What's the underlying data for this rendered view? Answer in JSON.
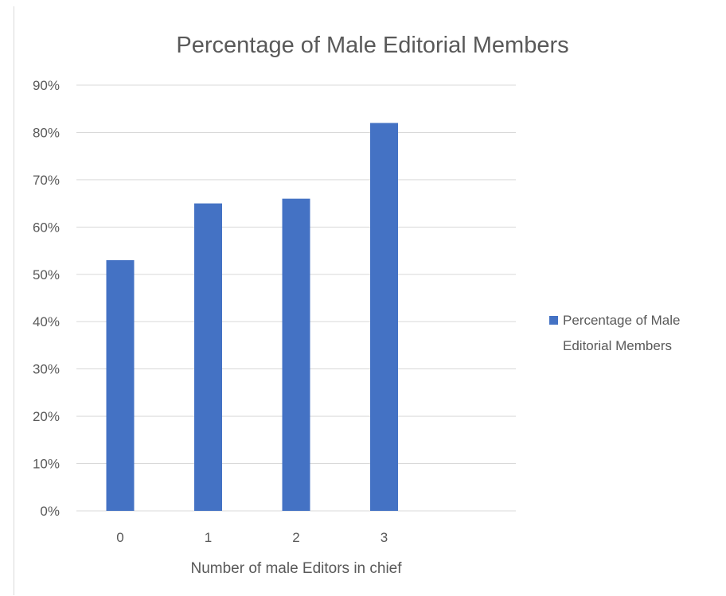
{
  "chart_data": {
    "type": "bar",
    "title": "Percentage of Male Editorial Members",
    "xlabel": "Number of male Editors in chief",
    "ylabel": "",
    "categories": [
      "0",
      "1",
      "2",
      "3"
    ],
    "series": [
      {
        "name": "Percentage of Male Editorial Members",
        "values": [
          53,
          65,
          66,
          82
        ]
      }
    ],
    "ylim": [
      0,
      90
    ],
    "y_ticks": [
      "0%",
      "10%",
      "20%",
      "30%",
      "40%",
      "50%",
      "60%",
      "70%",
      "80%",
      "90%"
    ],
    "grid": true,
    "legend_position": "right",
    "legend_lines": [
      "Percentage of Male",
      "Editorial Members"
    ],
    "bar_color": "#4472C4",
    "grid_color": "#d9d9d9"
  }
}
